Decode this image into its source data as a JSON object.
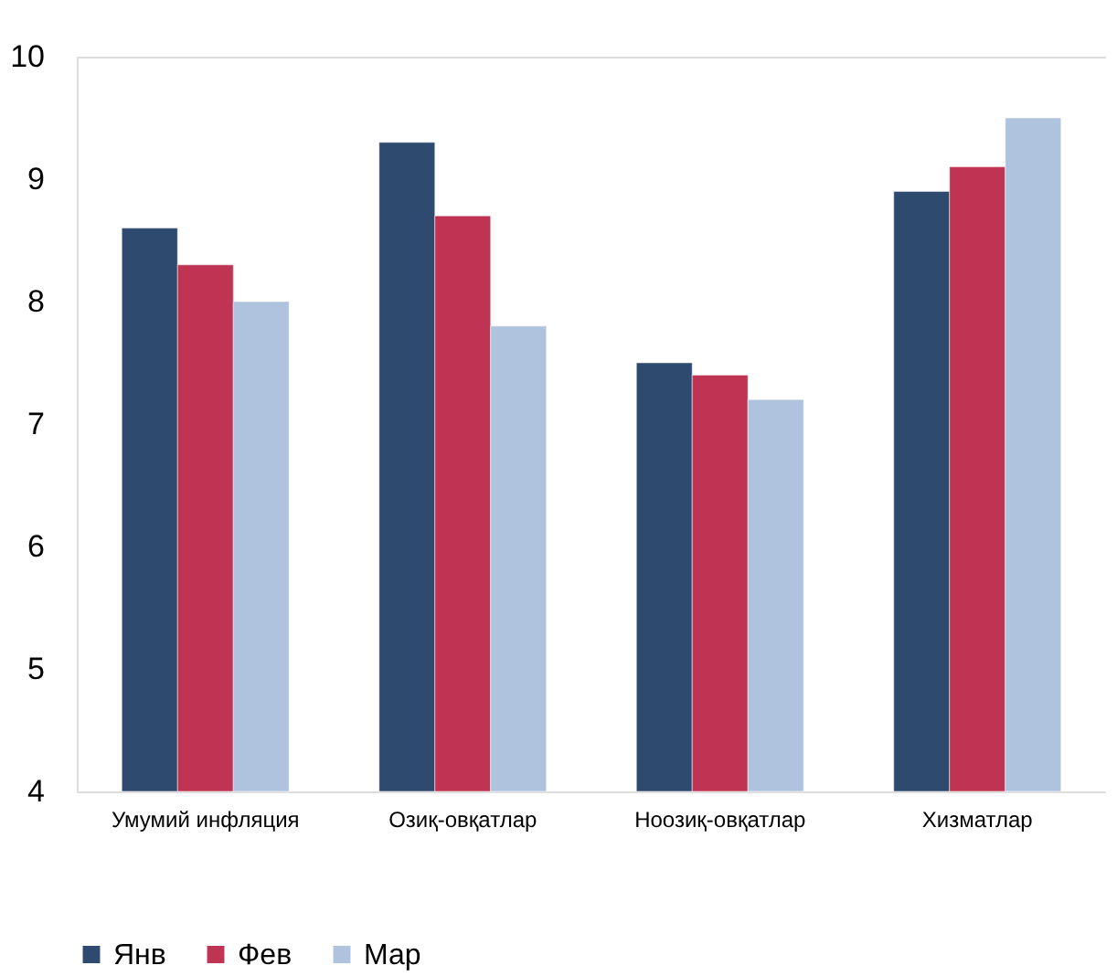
{
  "chart_data": {
    "type": "bar",
    "categories": [
      "Умумий инфляция",
      "Озиқ-овқатлар",
      "Ноозиқ-овқатлар",
      "Хизматлар"
    ],
    "series": [
      {
        "name": "Янв",
        "color": "#2f4a6f",
        "values": [
          8.6,
          9.3,
          7.5,
          8.9
        ]
      },
      {
        "name": "Фев",
        "color": "#bf3452",
        "values": [
          8.3,
          8.7,
          7.4,
          9.1
        ]
      },
      {
        "name": "Мар",
        "color": "#afc3de",
        "values": [
          8.0,
          7.8,
          7.2,
          9.5
        ]
      }
    ],
    "ylim": [
      4,
      10
    ],
    "yticks": [
      4,
      5,
      6,
      7,
      8,
      9,
      10
    ],
    "grid": false,
    "legend": "bottom"
  }
}
